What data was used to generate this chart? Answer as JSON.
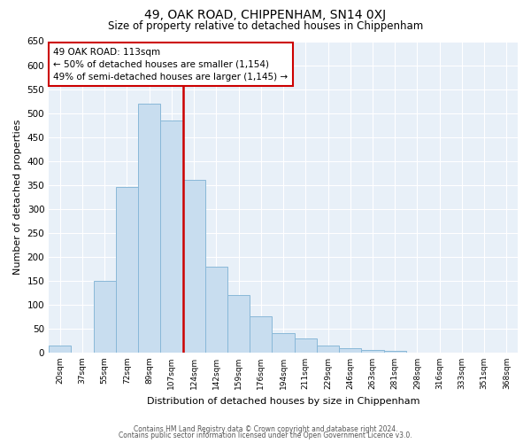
{
  "title": "49, OAK ROAD, CHIPPENHAM, SN14 0XJ",
  "subtitle": "Size of property relative to detached houses in Chippenham",
  "xlabel": "Distribution of detached houses by size in Chippenham",
  "ylabel": "Number of detached properties",
  "bar_labels": [
    "20sqm",
    "37sqm",
    "55sqm",
    "72sqm",
    "89sqm",
    "107sqm",
    "124sqm",
    "142sqm",
    "159sqm",
    "176sqm",
    "194sqm",
    "211sqm",
    "229sqm",
    "246sqm",
    "263sqm",
    "281sqm",
    "298sqm",
    "316sqm",
    "333sqm",
    "351sqm",
    "368sqm"
  ],
  "bar_heights": [
    15,
    0,
    150,
    345,
    520,
    485,
    360,
    180,
    120,
    75,
    40,
    30,
    15,
    10,
    5,
    3,
    0,
    0,
    0,
    0,
    0
  ],
  "bar_color": "#c8ddef",
  "bar_edge_color": "#89b8d8",
  "vline_color": "#cc0000",
  "vline_x_index": 5,
  "annotation_title": "49 OAK ROAD: 113sqm",
  "annotation_line1": "← 50% of detached houses are smaller (1,154)",
  "annotation_line2": "49% of semi-detached houses are larger (1,145) →",
  "ylim": [
    0,
    650
  ],
  "yticks": [
    0,
    50,
    100,
    150,
    200,
    250,
    300,
    350,
    400,
    450,
    500,
    550,
    600,
    650
  ],
  "footer_line1": "Contains HM Land Registry data © Crown copyright and database right 2024.",
  "footer_line2": "Contains public sector information licensed under the Open Government Licence v3.0.",
  "bg_color": "#ffffff",
  "plot_bg_color": "#e8f0f8",
  "grid_color": "#ffffff",
  "annotation_box_edge": "#cc0000"
}
